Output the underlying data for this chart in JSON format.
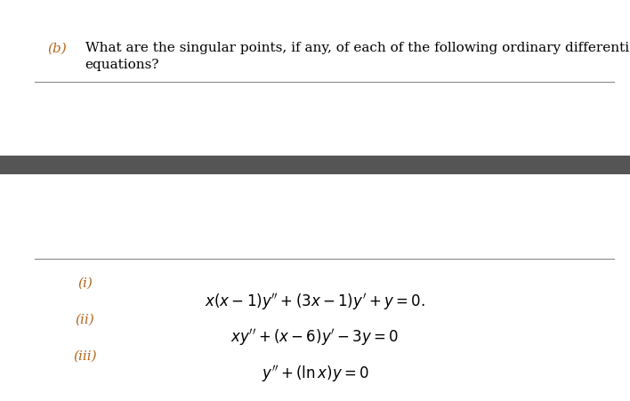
{
  "bg_color": "#ffffff",
  "label_color": "#b5651d",
  "text_color": "#000000",
  "part_b_label": "(b)",
  "part_b_text_line1": "What are the singular points, if any, of each of the following ordinary differential",
  "part_b_text_line2": "equations?",
  "bar_color": "#555555",
  "roman_i": "(i)",
  "roman_ii": "(ii)",
  "roman_iii": "(iii)",
  "eq1": "$x(x-1)y'' + (3x-1)y' + y = 0.$",
  "eq2": "$xy'' + (x-6)y' - 3y = 0$",
  "eq3": "$y'' + (\\ln x)y = 0$"
}
